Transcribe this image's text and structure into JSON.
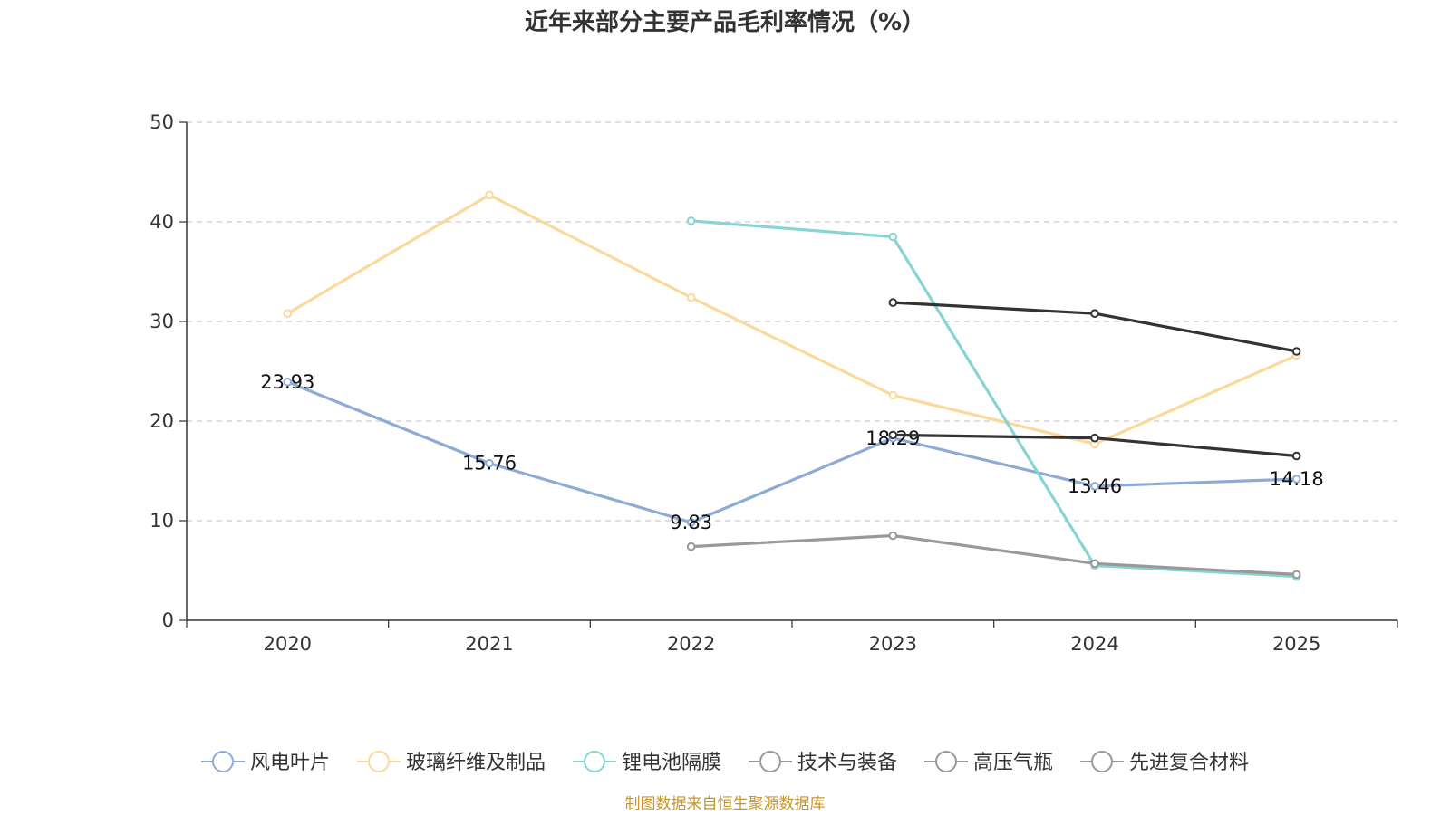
{
  "chart_data": {
    "type": "line",
    "title": "近年来部分主要产品毛利率情况（%）",
    "xlabel": "",
    "ylabel": "",
    "ylim": [
      0,
      50
    ],
    "yticks": [
      0,
      10,
      20,
      30,
      40,
      50
    ],
    "categories": [
      "2020",
      "2021",
      "2022",
      "2023",
      "2024",
      "2025"
    ],
    "grid": "horizontal-dashed",
    "legend_position": "bottom",
    "series": [
      {
        "name": "风电叶片",
        "color": "#8eabd6",
        "values": [
          23.93,
          15.76,
          9.83,
          18.29,
          13.46,
          14.18
        ],
        "show_labels": true
      },
      {
        "name": "玻璃纤维及制品",
        "color": "#fbd99b",
        "values": [
          30.8,
          42.7,
          32.4,
          22.6,
          17.7,
          26.6
        ],
        "show_labels": false
      },
      {
        "name": "锂电池隔膜",
        "color": "#88d4d4",
        "values": [
          null,
          null,
          40.1,
          38.5,
          5.5,
          4.4
        ],
        "show_labels": false
      },
      {
        "name": "技术与装备",
        "color": "#333333",
        "values": [
          null,
          null,
          null,
          31.9,
          30.8,
          27.0
        ],
        "show_labels": false
      },
      {
        "name": "高压气瓶",
        "color": "#333333",
        "values": [
          null,
          null,
          null,
          18.6,
          18.3,
          16.5
        ],
        "show_labels": false
      },
      {
        "name": "先进复合材料",
        "color": "#999999",
        "values": [
          null,
          null,
          7.4,
          8.5,
          5.7,
          4.6
        ],
        "show_labels": false
      }
    ],
    "legend_icon_color": "#999999",
    "source_note": "制图数据来自恒生聚源数据库"
  }
}
